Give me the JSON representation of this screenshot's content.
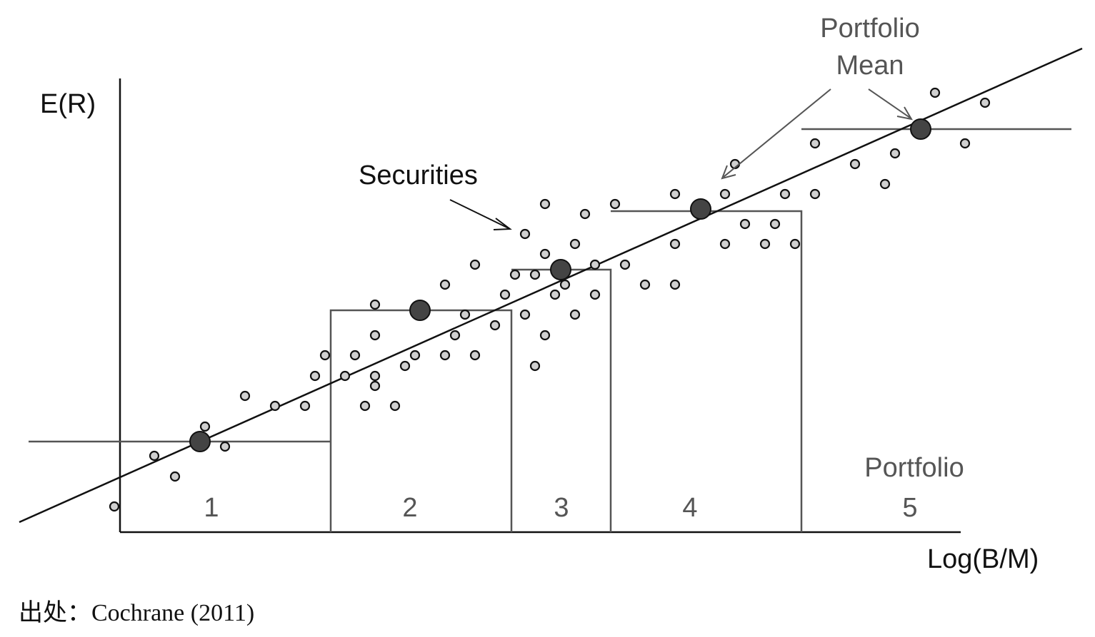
{
  "chart_data": {
    "type": "scatter",
    "ylabel": "E(R)",
    "xlabel": "Log(B/M)",
    "portfolio_label": "Portfolio",
    "portfolio_numbers": [
      "1",
      "2",
      "3",
      "4",
      "5"
    ],
    "annotations": {
      "securities": "Securities",
      "portfolio_mean_line1": "Portfolio",
      "portfolio_mean_line2": "Mean"
    },
    "caption": "出处：Cochrane (2011)",
    "colors": {
      "line": "#111111",
      "frame": "#555555",
      "security_fill": "#d0d0d0",
      "mean_fill": "#444444"
    }
  }
}
